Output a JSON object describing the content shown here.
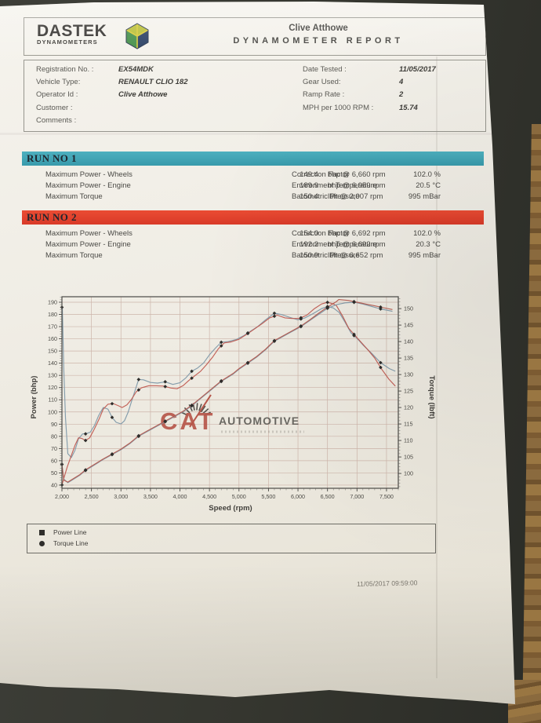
{
  "header": {
    "logo_title": "DASTEK",
    "logo_subtitle": "DYNAMOMETERS",
    "customer_name": "Clive Atthowe",
    "report_title": "DYNAMOMETER REPORT"
  },
  "info": {
    "left": [
      {
        "label": "Registration No. :",
        "value": "EX54MDK"
      },
      {
        "label": "Vehicle Type:",
        "value": "RENAULT CLIO 182"
      },
      {
        "label": "Operator Id :",
        "value": "Clive Atthowe"
      },
      {
        "label": "Customer :",
        "value": ""
      },
      {
        "label": "Comments :",
        "value": ""
      }
    ],
    "right": [
      {
        "label": "Date Tested :",
        "value": "11/05/2017"
      },
      {
        "label": "Gear Used:",
        "value": "4"
      },
      {
        "label": "Ramp Rate :",
        "value": "2"
      },
      {
        "label": "MPH per 1000 RPM :",
        "value": "15.74"
      }
    ]
  },
  "runs": [
    {
      "title": "RUN NO 1",
      "bar_color": "#3fa6b6",
      "rows": [
        {
          "label": "Maximum Power - Wheels",
          "value": "149.4",
          "unit": "bhp @ 6,660 rpm"
        },
        {
          "label": "Maximum Power - Engine",
          "value": "189.9",
          "unit": "bhp @ 6,959 rpm"
        },
        {
          "label": "Maximum Torque",
          "value": "150.4",
          "unit": "lbft @ 2,007 rpm"
        }
      ],
      "env": [
        {
          "label": "Correction Factor",
          "value": "102.0 %"
        },
        {
          "label": "Environment Temperature",
          "value": "20.5 °C"
        },
        {
          "label": "Barometric Pressure",
          "value": "995 mBar"
        }
      ]
    },
    {
      "title": "RUN NO 2",
      "bar_color": "#e2422d",
      "rows": [
        {
          "label": "Maximum Power - Wheels",
          "value": "154.0",
          "unit": "bhp @ 6,692 rpm"
        },
        {
          "label": "Maximum Power - Engine",
          "value": "192.2",
          "unit": "bhp @ 6,692 rpm"
        },
        {
          "label": "Maximum Torque",
          "value": "150.9",
          "unit": "lbft @ 6,652 rpm"
        }
      ],
      "env": [
        {
          "label": "Correction Factor",
          "value": "102.0 %"
        },
        {
          "label": "Environment Temperature",
          "value": "20.3 °C"
        },
        {
          "label": "Barometric Pressure",
          "value": "995 mBar"
        }
      ]
    }
  ],
  "watermark": {
    "line1": "CAT",
    "line2": "AUTOMOTIVE"
  },
  "legend": [
    {
      "marker": "square",
      "label": "Power Line"
    },
    {
      "marker": "circle",
      "label": "Torque Line"
    }
  ],
  "footer": {
    "timestamp": "11/05/2017 09:59:00"
  },
  "chart_data": {
    "type": "line",
    "xlabel": "Speed (rpm)",
    "ylabel_left": "Power (bhp)",
    "ylabel_right": "Torque (lbft)",
    "x_range": [
      2000,
      7700
    ],
    "left_range": [
      37.4,
      194.5
    ],
    "right_range": [
      95.5,
      153.6
    ],
    "x_ticks": [
      2000,
      2500,
      3000,
      3500,
      4000,
      4500,
      5000,
      5500,
      6000,
      6500,
      7000,
      7500
    ],
    "x_tick_labels": [
      "2,000",
      "2,500",
      "3,000",
      "3,500",
      "4,000",
      "4,500",
      "5,000",
      "5,500",
      "6,000",
      "6,500",
      "7,000",
      "7,500"
    ],
    "left_ticks": [
      40,
      50,
      60,
      70,
      80,
      90,
      100,
      110,
      120,
      130,
      140,
      150,
      160,
      170,
      180,
      190
    ],
    "right_ticks": [
      100,
      105,
      110,
      115,
      120,
      125,
      130,
      135,
      140,
      145,
      150
    ],
    "grid_color": "#cdb5aa",
    "marker_rpm": [
      2000,
      2400,
      2850,
      3300,
      3750,
      4200,
      4700,
      5150,
      5600,
      6050,
      6500,
      6950,
      7400
    ],
    "marker_color": "#2e2d2b",
    "series": [
      {
        "name": "Run 1 Torque Line",
        "axis": "right",
        "color": "#7e99a9",
        "points": [
          [
            2007,
            150.4
          ],
          [
            2030,
            132
          ],
          [
            2060,
            117
          ],
          [
            2100,
            106
          ],
          [
            2160,
            104.8
          ],
          [
            2220,
            107
          ],
          [
            2280,
            110.5
          ],
          [
            2350,
            112
          ],
          [
            2400,
            112
          ],
          [
            2480,
            112.5
          ],
          [
            2550,
            114.5
          ],
          [
            2620,
            117.5
          ],
          [
            2700,
            120
          ],
          [
            2780,
            119.5
          ],
          [
            2850,
            117
          ],
          [
            2920,
            115.5
          ],
          [
            3000,
            115
          ],
          [
            3060,
            116
          ],
          [
            3120,
            118.5
          ],
          [
            3200,
            123
          ],
          [
            3300,
            128.5
          ],
          [
            3380,
            128.4
          ],
          [
            3500,
            127.6
          ],
          [
            3620,
            127.4
          ],
          [
            3750,
            127.8
          ],
          [
            3880,
            127
          ],
          [
            4000,
            127.5
          ],
          [
            4100,
            129
          ],
          [
            4200,
            131
          ],
          [
            4300,
            132
          ],
          [
            4400,
            133.5
          ],
          [
            4500,
            136
          ],
          [
            4600,
            138
          ],
          [
            4700,
            139.8
          ],
          [
            4820,
            140
          ],
          [
            4950,
            140.6
          ],
          [
            5080,
            141.8
          ],
          [
            5200,
            143.2
          ],
          [
            5320,
            144.6
          ],
          [
            5450,
            146.6
          ],
          [
            5600,
            148.6
          ],
          [
            5720,
            148.2
          ],
          [
            5850,
            147.4
          ],
          [
            6000,
            146.6
          ],
          [
            6120,
            147.2
          ],
          [
            6250,
            148.4
          ],
          [
            6400,
            150
          ],
          [
            6500,
            150.6
          ],
          [
            6600,
            150.2
          ],
          [
            6700,
            148.8
          ],
          [
            6800,
            145.8
          ],
          [
            6900,
            142.6
          ],
          [
            7000,
            141
          ],
          [
            7100,
            139
          ],
          [
            7250,
            136.4
          ],
          [
            7400,
            133.6
          ],
          [
            7550,
            131.8
          ],
          [
            7650,
            131
          ]
        ]
      },
      {
        "name": "Run 2 Torque Line",
        "axis": "right",
        "color": "#c05a50",
        "points": [
          [
            2000,
            96.5
          ],
          [
            2040,
            99
          ],
          [
            2090,
            102
          ],
          [
            2150,
            105
          ],
          [
            2220,
            108.5
          ],
          [
            2280,
            110.8
          ],
          [
            2340,
            110.6
          ],
          [
            2400,
            110
          ],
          [
            2470,
            110.8
          ],
          [
            2550,
            113.5
          ],
          [
            2630,
            116.5
          ],
          [
            2700,
            119.5
          ],
          [
            2780,
            121
          ],
          [
            2870,
            121.2
          ],
          [
            2950,
            120.6
          ],
          [
            3020,
            120
          ],
          [
            3100,
            120.8
          ],
          [
            3180,
            122.5
          ],
          [
            3260,
            124.8
          ],
          [
            3350,
            126
          ],
          [
            3470,
            126.6
          ],
          [
            3600,
            126.6
          ],
          [
            3720,
            126.5
          ],
          [
            3850,
            125.9
          ],
          [
            3950,
            125.7
          ],
          [
            4050,
            126.6
          ],
          [
            4150,
            128.2
          ],
          [
            4250,
            129.6
          ],
          [
            4350,
            131
          ],
          [
            4450,
            133
          ],
          [
            4550,
            135.2
          ],
          [
            4650,
            137.8
          ],
          [
            4750,
            139.6
          ],
          [
            4870,
            139.9
          ],
          [
            5000,
            140.7
          ],
          [
            5130,
            142.2
          ],
          [
            5260,
            143.8
          ],
          [
            5390,
            145.4
          ],
          [
            5520,
            147.2
          ],
          [
            5650,
            148
          ],
          [
            5780,
            147.2
          ],
          [
            5900,
            147
          ],
          [
            6020,
            147
          ],
          [
            6150,
            148
          ],
          [
            6280,
            150
          ],
          [
            6400,
            151.4
          ],
          [
            6500,
            151.9
          ],
          [
            6600,
            151.4
          ],
          [
            6652,
            150.9
          ],
          [
            6760,
            147.6
          ],
          [
            6860,
            144
          ],
          [
            6960,
            142
          ],
          [
            7060,
            140
          ],
          [
            7180,
            137.6
          ],
          [
            7300,
            135
          ],
          [
            7420,
            131.6
          ],
          [
            7540,
            128.6
          ],
          [
            7650,
            126.5
          ]
        ]
      },
      {
        "name": "Run 1 Power Line",
        "axis": "left",
        "color": "#7e99a9",
        "points": [
          [
            2000,
            57
          ],
          [
            2030,
            45
          ],
          [
            2100,
            42
          ],
          [
            2200,
            45
          ],
          [
            2300,
            48
          ],
          [
            2400,
            52
          ],
          [
            2500,
            55
          ],
          [
            2600,
            58
          ],
          [
            2700,
            61
          ],
          [
            2850,
            65
          ],
          [
            3000,
            69
          ],
          [
            3150,
            74
          ],
          [
            3300,
            80
          ],
          [
            3450,
            84
          ],
          [
            3600,
            88
          ],
          [
            3750,
            92
          ],
          [
            3900,
            96
          ],
          [
            4050,
            100
          ],
          [
            4200,
            105
          ],
          [
            4350,
            111
          ],
          [
            4500,
            117
          ],
          [
            4700,
            125
          ],
          [
            4900,
            131
          ],
          [
            5000,
            135
          ],
          [
            5150,
            140
          ],
          [
            5300,
            145
          ],
          [
            5450,
            151
          ],
          [
            5600,
            158
          ],
          [
            5750,
            162
          ],
          [
            5900,
            166
          ],
          [
            6050,
            170
          ],
          [
            6200,
            175
          ],
          [
            6350,
            180
          ],
          [
            6500,
            185
          ],
          [
            6650,
            188
          ],
          [
            6800,
            189.5
          ],
          [
            6959,
            189.9
          ],
          [
            7100,
            188.5
          ],
          [
            7250,
            186.5
          ],
          [
            7400,
            184.5
          ],
          [
            7600,
            182.5
          ]
        ]
      },
      {
        "name": "Run 2 Power Line",
        "axis": "left",
        "color": "#b65a4e",
        "points": [
          [
            2000,
            57
          ],
          [
            2030,
            44
          ],
          [
            2100,
            42.5
          ],
          [
            2200,
            45.5
          ],
          [
            2300,
            48.5
          ],
          [
            2400,
            52.5
          ],
          [
            2500,
            55.5
          ],
          [
            2600,
            58.5
          ],
          [
            2700,
            61.5
          ],
          [
            2850,
            65.5
          ],
          [
            3000,
            69.5
          ],
          [
            3150,
            74.5
          ],
          [
            3300,
            80.5
          ],
          [
            3450,
            84.5
          ],
          [
            3600,
            88.5
          ],
          [
            3750,
            92.5
          ],
          [
            3900,
            96.5
          ],
          [
            4050,
            100.5
          ],
          [
            4200,
            105.5
          ],
          [
            4350,
            111.5
          ],
          [
            4500,
            117.5
          ],
          [
            4700,
            125.5
          ],
          [
            4900,
            131.5
          ],
          [
            5000,
            135.5
          ],
          [
            5150,
            140.5
          ],
          [
            5300,
            145.5
          ],
          [
            5450,
            151.5
          ],
          [
            5600,
            158.5
          ],
          [
            5750,
            162.5
          ],
          [
            5900,
            166.5
          ],
          [
            6050,
            170.5
          ],
          [
            6200,
            175.5
          ],
          [
            6350,
            181
          ],
          [
            6500,
            186
          ],
          [
            6650,
            190.5
          ],
          [
            6692,
            192.2
          ],
          [
            6850,
            191.5
          ],
          [
            7000,
            190
          ],
          [
            7150,
            188.5
          ],
          [
            7300,
            187
          ],
          [
            7450,
            185.5
          ],
          [
            7600,
            184
          ]
        ]
      }
    ]
  }
}
